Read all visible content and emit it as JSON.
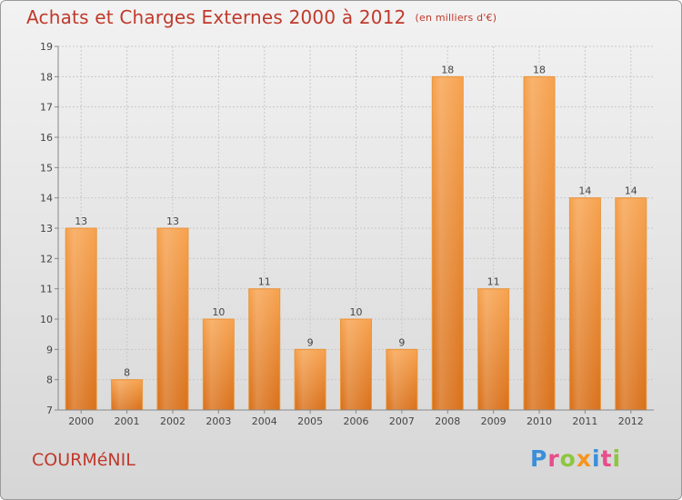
{
  "title": "Achats et Charges Externes 2000 à 2012",
  "unit_note": "(en milliers d'€)",
  "commune": "COURMéNIL",
  "logo": {
    "letters": [
      "P",
      "r",
      "o",
      "x",
      "i",
      "t",
      "i"
    ],
    "colors": [
      "#3a8fd8",
      "#e84c8b",
      "#8dc63f",
      "#f7941d",
      "#3a8fd8",
      "#e84c8b",
      "#8dc63f"
    ]
  },
  "colors": {
    "bar_top": "#f7a350",
    "bar_bottom": "#d9711b",
    "title": "#c0392b"
  },
  "chart_data": {
    "type": "bar",
    "categories": [
      "2000",
      "2001",
      "2002",
      "2003",
      "2004",
      "2005",
      "2006",
      "2007",
      "2008",
      "2009",
      "2010",
      "2011",
      "2012"
    ],
    "values": [
      13,
      8,
      13,
      10,
      11,
      9,
      10,
      9,
      18,
      11,
      18,
      14,
      14
    ],
    "value_labels": [
      "13",
      "8",
      "13",
      "10",
      "11",
      "9",
      "10",
      "9",
      "18",
      "11",
      "18",
      "14",
      "14"
    ],
    "yticks": [
      "7",
      "8",
      "9",
      "10",
      "11",
      "12",
      "13",
      "14",
      "15",
      "16",
      "17",
      "18",
      "19"
    ],
    "ylim": [
      7,
      19
    ],
    "grid": true
  }
}
